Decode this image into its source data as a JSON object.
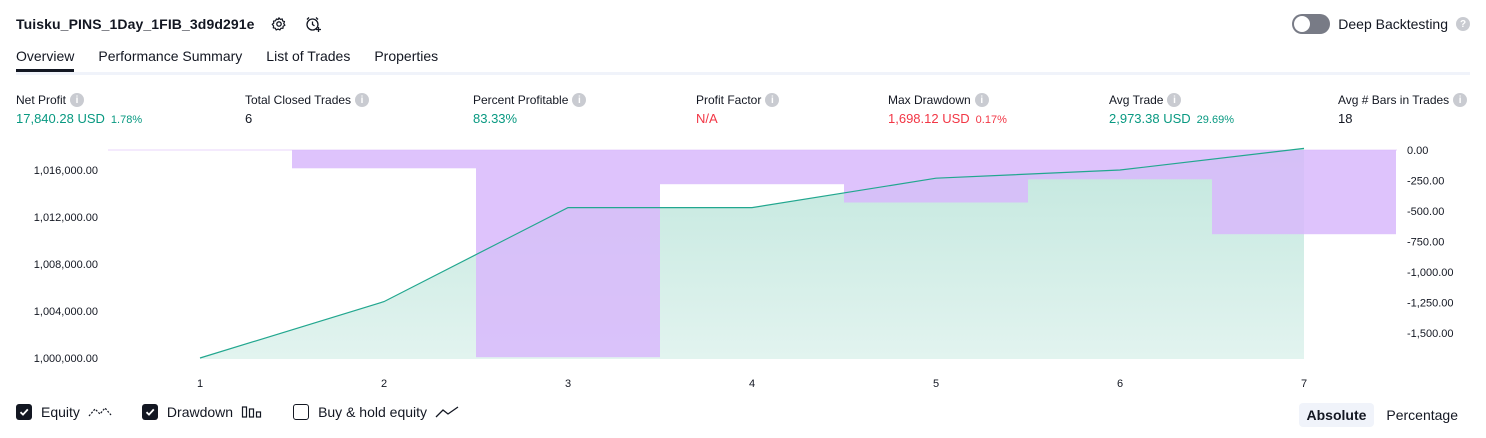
{
  "header": {
    "title": "Tuisku_PINS_1Day_1FIB_3d9d291e",
    "deep_backtesting_label": "Deep Backtesting"
  },
  "tabs": [
    {
      "label": "Overview",
      "active": true
    },
    {
      "label": "Performance Summary",
      "active": false
    },
    {
      "label": "List of Trades",
      "active": false
    },
    {
      "label": "Properties",
      "active": false
    }
  ],
  "stats": {
    "net_profit": {
      "label": "Net Profit",
      "value": "17,840.28 USD",
      "pct": "1.78%"
    },
    "total_closed_trades": {
      "label": "Total Closed Trades",
      "value": "6"
    },
    "percent_profitable": {
      "label": "Percent Profitable",
      "value": "83.33%"
    },
    "profit_factor": {
      "label": "Profit Factor",
      "value": "N/A"
    },
    "max_drawdown": {
      "label": "Max Drawdown",
      "value": "1,698.12 USD",
      "pct": "0.17%"
    },
    "avg_trade": {
      "label": "Avg Trade",
      "value": "2,973.38 USD",
      "pct": "29.69%"
    },
    "avg_bars": {
      "label": "Avg # Bars in Trades",
      "value": "18"
    }
  },
  "colors": {
    "positive": "#089981",
    "negative": "#f23645",
    "equity_line": "#22a78f",
    "equity_fill": "#bfe6dc",
    "drawdown_fill": "#d8b8fb"
  },
  "chart_data": {
    "type": "line",
    "x": [
      1,
      2,
      3,
      4,
      5,
      6,
      7
    ],
    "x_ticks": [
      "1",
      "2",
      "3",
      "4",
      "5",
      "6",
      "7"
    ],
    "series": [
      {
        "name": "Equity",
        "axis": "left",
        "values": [
          1000000,
          1004800,
          1012800,
          1012800,
          1015300,
          1016000,
          1017840
        ]
      },
      {
        "name": "Drawdown",
        "axis": "right",
        "type": "bar",
        "values": [
          0,
          -150,
          -1698,
          -280,
          -430,
          -240,
          -690
        ]
      }
    ],
    "left_axis": {
      "ticks": [
        "1,000,000.00",
        "1,004,000.00",
        "1,008,000.00",
        "1,012,000.00",
        "1,016,000.00"
      ],
      "tick_values": [
        1000000,
        1004000,
        1008000,
        1012000,
        1016000
      ]
    },
    "right_axis": {
      "ticks": [
        "0.00",
        "-250.00",
        "-500.00",
        "-750.00",
        "-1,000.00",
        "-1,250.00",
        "-1,500.00"
      ],
      "tick_values": [
        0,
        -250,
        -500,
        -750,
        -1000,
        -1250,
        -1500
      ]
    }
  },
  "legend": {
    "equity": {
      "label": "Equity",
      "checked": true
    },
    "drawdown": {
      "label": "Drawdown",
      "checked": true
    },
    "buy_hold": {
      "label": "Buy & hold equity",
      "checked": false
    }
  },
  "mode": {
    "absolute": "Absolute",
    "percentage": "Percentage",
    "selected": "absolute"
  }
}
